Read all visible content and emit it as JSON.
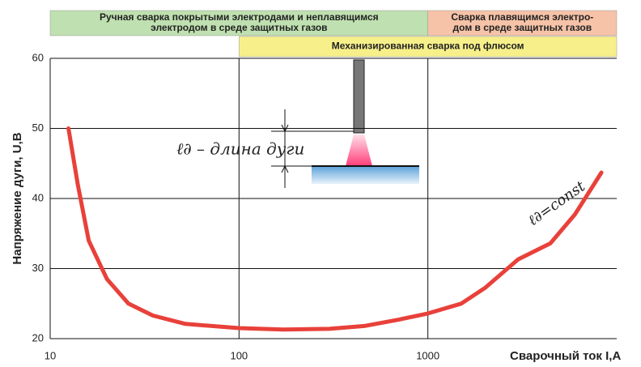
{
  "chart_data": {
    "type": "line",
    "x_label": "Сварочный ток I,A",
    "y_label": "Напряжение дуги, U,B",
    "log_x": true,
    "xlim": [
      10,
      10000
    ],
    "xticks": [
      10,
      100,
      1000
    ],
    "ylim": [
      20,
      60
    ],
    "yticks": [
      20,
      30,
      40,
      50,
      60
    ],
    "grid": true,
    "x": [
      12.5,
      14,
      16,
      20,
      26,
      35,
      52,
      100,
      172,
      300,
      460,
      700,
      1000,
      1500,
      2020,
      3000,
      4450,
      6000,
      8300
    ],
    "series": [
      {
        "color": "#e8413a",
        "values": [
          50,
          42,
          34,
          28.5,
          25,
          23.3,
          22.1,
          21.5,
          21.3,
          21.4,
          21.8,
          22.7,
          23.6,
          25,
          27.3,
          31.3,
          33.6,
          37.7,
          43.7
        ]
      }
    ],
    "bands": [
      {
        "lines": [
          "Ручная сварка покрытыми электродами и неплавящимся",
          "электродом в среде защитных газов"
        ],
        "from": 10,
        "to": 1000,
        "color": "#bfe0b0",
        "row": 0
      },
      {
        "lines": [
          "Сварка плавящимся электро-",
          "дом в среде защитных газов"
        ],
        "from": 1000,
        "to": 10000,
        "color": "#f6c3a8",
        "row": 0
      },
      {
        "lines": [
          "Механизированная сварка под флюсом"
        ],
        "from": 100,
        "to": 10000,
        "color": "#f7f08a",
        "row": 1
      }
    ],
    "annotations": {
      "arc_length": "ℓ∂ – длина дуги",
      "curve": "ℓ∂=const"
    }
  }
}
